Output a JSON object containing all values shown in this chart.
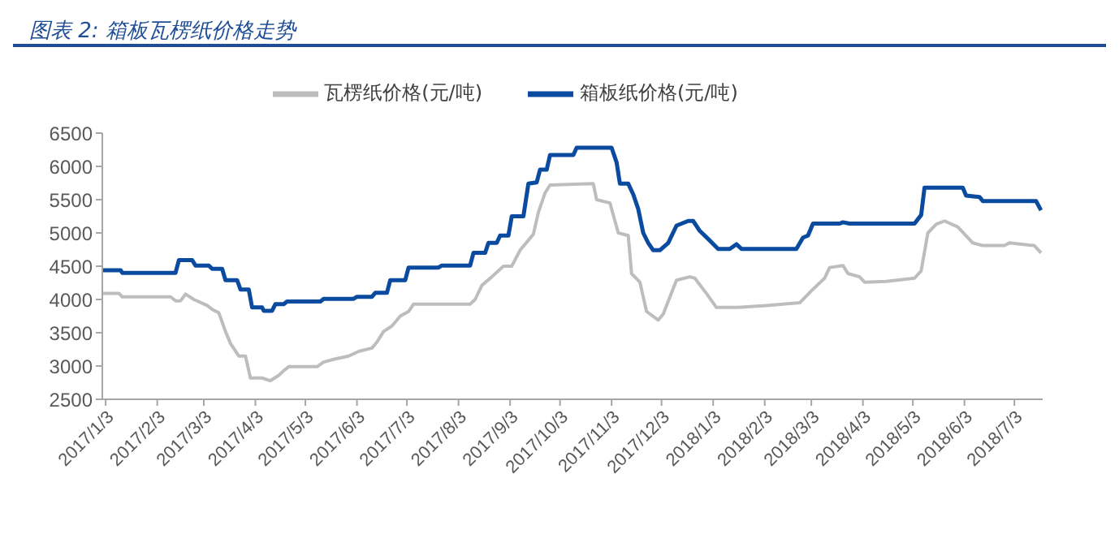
{
  "chart_data": {
    "type": "line",
    "title": "图表 2:  箱板瓦楞纸价格走势",
    "legend": "top",
    "grid": false,
    "xlim": [
      "2017-01-01",
      "2018-07-20"
    ],
    "xticks": [
      {
        "value": "2017-01-03",
        "label": "2017/1/3"
      },
      {
        "value": "2017-02-03",
        "label": "2017/2/3"
      },
      {
        "value": "2017-03-03",
        "label": "2017/3/3"
      },
      {
        "value": "2017-04-03",
        "label": "2017/4/3"
      },
      {
        "value": "2017-05-03",
        "label": "2017/5/3"
      },
      {
        "value": "2017-06-03",
        "label": "2017/6/3"
      },
      {
        "value": "2017-07-03",
        "label": "2017/7/3"
      },
      {
        "value": "2017-08-03",
        "label": "2017/8/3"
      },
      {
        "value": "2017-09-03",
        "label": "2017/9/3"
      },
      {
        "value": "2017-10-03",
        "label": "2017/10/3"
      },
      {
        "value": "2017-11-03",
        "label": "2017/11/3"
      },
      {
        "value": "2017-12-03",
        "label": "2017/12/3"
      },
      {
        "value": "2018-01-03",
        "label": "2018/1/3"
      },
      {
        "value": "2018-02-03",
        "label": "2018/2/3"
      },
      {
        "value": "2018-03-03",
        "label": "2018/3/3"
      },
      {
        "value": "2018-04-03",
        "label": "2018/4/3"
      },
      {
        "value": "2018-05-03",
        "label": "2018/5/3"
      },
      {
        "value": "2018-06-03",
        "label": "2018/6/3"
      },
      {
        "value": "2018-07-03",
        "label": "2018/7/3"
      }
    ],
    "ylim": [
      2500,
      6500
    ],
    "yticks": [
      2500,
      3000,
      3500,
      4000,
      4500,
      5000,
      5500,
      6000,
      6500
    ],
    "series": [
      {
        "name": "箱板纸价格(元/吨)",
        "color": "#0a4a9f",
        "x": [
          "2017-01-01",
          "2017-01-12",
          "2017-01-13",
          "2017-02-14",
          "2017-02-16",
          "2017-02-24",
          "2017-02-26",
          "2017-03-06",
          "2017-03-08",
          "2017-03-14",
          "2017-03-16",
          "2017-03-23",
          "2017-03-25",
          "2017-03-30",
          "2017-04-01",
          "2017-04-07",
          "2017-04-08",
          "2017-04-13",
          "2017-04-15",
          "2017-04-20",
          "2017-04-22",
          "2017-05-12",
          "2017-05-14",
          "2017-06-01",
          "2017-06-03",
          "2017-06-12",
          "2017-06-14",
          "2017-06-21",
          "2017-06-23",
          "2017-07-02",
          "2017-07-04",
          "2017-07-22",
          "2017-07-24",
          "2017-08-10",
          "2017-08-12",
          "2017-08-19",
          "2017-08-21",
          "2017-08-26",
          "2017-08-28",
          "2017-09-02",
          "2017-09-04",
          "2017-09-11",
          "2017-09-14",
          "2017-09-19",
          "2017-09-21",
          "2017-09-25",
          "2017-09-27",
          "2017-10-11",
          "2017-10-13",
          "2017-11-03",
          "2017-11-06",
          "2017-11-08",
          "2017-11-13",
          "2017-11-16",
          "2017-11-19",
          "2017-11-22",
          "2017-11-25",
          "2017-11-28",
          "2017-12-02",
          "2017-12-07",
          "2017-12-12",
          "2017-12-19",
          "2017-12-22",
          "2017-12-26",
          "2017-12-31",
          "2018-01-06",
          "2018-01-13",
          "2018-01-17",
          "2018-01-20",
          "2018-02-22",
          "2018-02-26",
          "2018-03-01",
          "2018-03-04",
          "2018-03-20",
          "2018-03-22",
          "2018-03-26",
          "2018-05-04",
          "2018-05-08",
          "2018-05-10",
          "2018-06-02",
          "2018-06-04",
          "2018-06-12",
          "2018-06-14",
          "2018-07-16",
          "2018-07-19"
        ],
        "values": [
          4440,
          4440,
          4400,
          4400,
          4590,
          4590,
          4510,
          4510,
          4460,
          4460,
          4290,
          4290,
          4150,
          4150,
          3880,
          3880,
          3830,
          3830,
          3930,
          3930,
          3970,
          3970,
          4010,
          4010,
          4040,
          4040,
          4100,
          4100,
          4290,
          4290,
          4480,
          4480,
          4510,
          4510,
          4700,
          4700,
          4850,
          4850,
          4960,
          4960,
          5250,
          5250,
          5740,
          5760,
          5950,
          5950,
          6170,
          6170,
          6280,
          6280,
          6060,
          5740,
          5740,
          5580,
          5360,
          5000,
          4850,
          4740,
          4740,
          4850,
          5110,
          5180,
          5180,
          5030,
          4910,
          4760,
          4760,
          4830,
          4760,
          4760,
          4930,
          4960,
          5140,
          5140,
          5160,
          5140,
          5140,
          5270,
          5680,
          5680,
          5560,
          5540,
          5480,
          5480,
          5340
        ]
      },
      {
        "name": "瓦楞纸价格(元/吨)",
        "color": "#bdbdbd",
        "x": [
          "2017-01-01",
          "2017-01-11",
          "2017-01-13",
          "2017-02-11",
          "2017-02-14",
          "2017-02-17",
          "2017-02-20",
          "2017-02-25",
          "2017-03-05",
          "2017-03-08",
          "2017-03-12",
          "2017-03-16",
          "2017-03-19",
          "2017-03-24",
          "2017-03-28",
          "2017-03-31",
          "2017-04-07",
          "2017-04-12",
          "2017-04-17",
          "2017-04-20",
          "2017-04-23",
          "2017-05-10",
          "2017-05-14",
          "2017-05-20",
          "2017-05-29",
          "2017-06-04",
          "2017-06-12",
          "2017-06-15",
          "2017-06-19",
          "2017-06-24",
          "2017-06-29",
          "2017-07-04",
          "2017-07-07",
          "2017-08-10",
          "2017-08-13",
          "2017-08-17",
          "2017-08-23",
          "2017-08-30",
          "2017-09-04",
          "2017-09-09",
          "2017-09-17",
          "2017-09-20",
          "2017-09-24",
          "2017-09-27",
          "2017-10-23",
          "2017-10-25",
          "2017-11-02",
          "2017-11-07",
          "2017-11-13",
          "2017-11-15",
          "2017-11-20",
          "2017-11-24",
          "2017-12-01",
          "2017-12-04",
          "2017-12-12",
          "2017-12-20",
          "2017-12-23",
          "2017-12-30",
          "2018-01-05",
          "2018-01-18",
          "2018-02-04",
          "2018-02-24",
          "2018-03-03",
          "2018-03-11",
          "2018-03-14",
          "2018-03-22",
          "2018-03-25",
          "2018-04-01",
          "2018-04-04",
          "2018-04-17",
          "2018-05-04",
          "2018-05-08",
          "2018-05-12",
          "2018-05-17",
          "2018-05-22",
          "2018-05-30",
          "2018-06-08",
          "2018-06-14",
          "2018-06-27",
          "2018-06-30",
          "2018-07-15",
          "2018-07-19"
        ],
        "values": [
          4090,
          4090,
          4040,
          4040,
          3980,
          3980,
          4080,
          4000,
          3910,
          3850,
          3800,
          3520,
          3340,
          3150,
          3150,
          2820,
          2820,
          2780,
          2860,
          2930,
          2990,
          2990,
          3060,
          3100,
          3150,
          3220,
          3270,
          3360,
          3520,
          3600,
          3750,
          3820,
          3930,
          3930,
          4000,
          4210,
          4340,
          4500,
          4500,
          4740,
          4980,
          5310,
          5600,
          5720,
          5740,
          5500,
          5450,
          5000,
          4960,
          4390,
          4260,
          3820,
          3690,
          3780,
          4290,
          4340,
          4320,
          4090,
          3880,
          3880,
          3910,
          3950,
          4130,
          4320,
          4480,
          4510,
          4390,
          4340,
          4260,
          4270,
          4320,
          4430,
          5000,
          5130,
          5180,
          5090,
          4850,
          4810,
          4810,
          4850,
          4810,
          4700
        ]
      }
    ]
  }
}
